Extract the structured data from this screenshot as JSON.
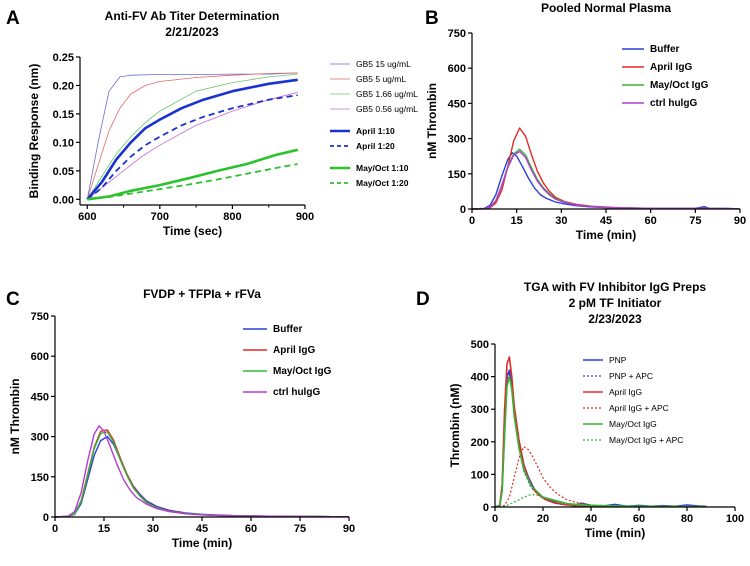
{
  "chart_data": [
    {
      "id": "A",
      "type": "line",
      "panel_letter": "A",
      "title": "Anti-FV Ab Titer Determination",
      "subtitle": "2/21/2023",
      "xlabel": "Time (sec)",
      "ylabel": "Binding Response (nm)",
      "xlim": [
        590,
        900
      ],
      "ylim": [
        -0.01,
        0.25
      ],
      "xticks": [
        600,
        700,
        800,
        900
      ],
      "yticks": [
        0.0,
        0.05,
        0.1,
        0.15,
        0.2,
        0.25
      ],
      "ytick_labels": [
        "0.00",
        "0.05",
        "0.10",
        "0.15",
        "0.20",
        "0.25"
      ],
      "legend_position": "right",
      "series": [
        {
          "name": "GB5 15 ug/mL",
          "color": "#6a6ad8",
          "style": "thin",
          "x": [
            600,
            615,
            630,
            645,
            660,
            690,
            750,
            800,
            850,
            890
          ],
          "y": [
            0.0,
            0.1,
            0.19,
            0.215,
            0.218,
            0.219,
            0.219,
            0.22,
            0.22,
            0.222
          ]
        },
        {
          "name": "GB5 5 ug/mL",
          "color": "#e06a6a",
          "style": "thin",
          "x": [
            600,
            615,
            630,
            645,
            660,
            680,
            700,
            750,
            800,
            850,
            890
          ],
          "y": [
            0.0,
            0.06,
            0.12,
            0.16,
            0.185,
            0.2,
            0.207,
            0.214,
            0.218,
            0.221,
            0.222
          ]
        },
        {
          "name": "GB5 1.66 ug/mL",
          "color": "#6cc66c",
          "style": "thin",
          "x": [
            600,
            620,
            640,
            660,
            680,
            700,
            750,
            800,
            850,
            890
          ],
          "y": [
            0.0,
            0.04,
            0.08,
            0.11,
            0.135,
            0.155,
            0.19,
            0.205,
            0.215,
            0.22
          ]
        },
        {
          "name": "GB5 0.56 ug/mL",
          "color": "#c86ad0",
          "style": "thin",
          "x": [
            600,
            625,
            650,
            675,
            700,
            750,
            800,
            850,
            890
          ],
          "y": [
            0.0,
            0.025,
            0.05,
            0.075,
            0.095,
            0.13,
            0.155,
            0.175,
            0.188
          ]
        },
        {
          "name": "April 1:10",
          "color": "#1a32d2",
          "style": "thick",
          "x": [
            600,
            620,
            640,
            660,
            680,
            700,
            730,
            760,
            800,
            850,
            890
          ],
          "y": [
            0.0,
            0.03,
            0.07,
            0.1,
            0.125,
            0.14,
            0.16,
            0.175,
            0.19,
            0.203,
            0.21
          ]
        },
        {
          "name": "April 1:20",
          "color": "#1a32d2",
          "style": "thickdash",
          "x": [
            600,
            620,
            640,
            660,
            680,
            700,
            730,
            760,
            800,
            850,
            890
          ],
          "y": [
            0.0,
            0.02,
            0.05,
            0.075,
            0.095,
            0.11,
            0.13,
            0.145,
            0.16,
            0.175,
            0.183
          ]
        },
        {
          "name": "May/Oct 1:10",
          "color": "#2ec12e",
          "style": "thick",
          "x": [
            600,
            630,
            660,
            700,
            740,
            780,
            820,
            860,
            890
          ],
          "y": [
            0.0,
            0.005,
            0.015,
            0.025,
            0.037,
            0.05,
            0.062,
            0.078,
            0.087
          ]
        },
        {
          "name": "May/Oct 1:20",
          "color": "#2ec12e",
          "style": "thickdash",
          "x": [
            600,
            630,
            660,
            700,
            740,
            780,
            820,
            860,
            890
          ],
          "y": [
            0.0,
            0.004,
            0.01,
            0.018,
            0.026,
            0.035,
            0.045,
            0.055,
            0.062
          ]
        }
      ]
    },
    {
      "id": "B",
      "type": "line",
      "panel_letter": "B",
      "title": "Pooled Normal Plasma",
      "xlabel": "Time (min)",
      "ylabel": "nM Thrombin",
      "xlim": [
        0,
        90
      ],
      "ylim": [
        0,
        750
      ],
      "xticks": [
        0,
        15,
        30,
        45,
        60,
        75,
        90
      ],
      "yticks": [
        0,
        150,
        300,
        450,
        600,
        750
      ],
      "legend_position": "top-right",
      "series": [
        {
          "name": "Buffer",
          "color": "#2b3fd6",
          "x": [
            0,
            4,
            6,
            8,
            10,
            12,
            13.5,
            15,
            17,
            19,
            21,
            23,
            25,
            28,
            31,
            35,
            40,
            45,
            50,
            55,
            60,
            65,
            70,
            75,
            78,
            80,
            85,
            90
          ],
          "y": [
            0,
            2,
            15,
            60,
            140,
            210,
            240,
            225,
            180,
            130,
            90,
            60,
            45,
            30,
            22,
            14,
            9,
            6,
            4,
            3,
            3,
            2,
            2,
            3,
            10,
            2,
            3,
            1
          ]
        },
        {
          "name": "April IgG",
          "color": "#e22a2a",
          "x": [
            0,
            4,
            6,
            8,
            10,
            12,
            14,
            16,
            18,
            20,
            22,
            24,
            26,
            28,
            31,
            35,
            40,
            45,
            50,
            55,
            60,
            65,
            70,
            75,
            80,
            85,
            90
          ],
          "y": [
            0,
            1,
            5,
            25,
            80,
            180,
            290,
            345,
            310,
            230,
            160,
            110,
            75,
            50,
            32,
            20,
            12,
            8,
            5,
            4,
            3,
            3,
            2,
            2,
            2,
            1,
            1
          ]
        },
        {
          "name": "May/Oct IgG",
          "color": "#35b535",
          "x": [
            0,
            4,
            6,
            8,
            10,
            12,
            14,
            16,
            18,
            20,
            22,
            24,
            26,
            28,
            31,
            35,
            40,
            45,
            50,
            55,
            60,
            65,
            70,
            75,
            80,
            85,
            90
          ],
          "y": [
            0,
            1,
            8,
            35,
            100,
            180,
            235,
            255,
            230,
            175,
            125,
            90,
            65,
            45,
            30,
            18,
            11,
            7,
            5,
            4,
            3,
            2,
            2,
            2,
            2,
            1,
            1
          ]
        },
        {
          "name": "ctrl hulgG",
          "color": "#b33cd6",
          "x": [
            0,
            4,
            6,
            8,
            10,
            12,
            14,
            16,
            18,
            20,
            22,
            24,
            26,
            28,
            31,
            35,
            40,
            45,
            50,
            55,
            60,
            65,
            70,
            75,
            80,
            85,
            90
          ],
          "y": [
            0,
            1,
            8,
            35,
            100,
            175,
            230,
            245,
            220,
            165,
            118,
            85,
            60,
            42,
            28,
            17,
            10,
            7,
            5,
            4,
            3,
            2,
            2,
            2,
            2,
            1,
            1
          ]
        }
      ]
    },
    {
      "id": "C",
      "type": "line",
      "panel_letter": "C",
      "title": "FVDP + TFPIa + rFVa",
      "xlabel": "Time (min)",
      "ylabel": "nM Thrombin",
      "xlim": [
        0,
        90
      ],
      "ylim": [
        0,
        750
      ],
      "xticks": [
        0,
        15,
        30,
        45,
        60,
        75,
        90
      ],
      "yticks": [
        0,
        150,
        300,
        450,
        600,
        750
      ],
      "legend_position": "top-right",
      "series": [
        {
          "name": "Buffer",
          "color": "#2b3fd6",
          "x": [
            0,
            4,
            6,
            8,
            10,
            12,
            14,
            16,
            18,
            20,
            22,
            24,
            26,
            28,
            31,
            35,
            40,
            45,
            50,
            55,
            60,
            65,
            70,
            75,
            80,
            85,
            90
          ],
          "y": [
            0,
            2,
            10,
            50,
            140,
            230,
            285,
            300,
            270,
            215,
            160,
            115,
            85,
            60,
            40,
            25,
            15,
            10,
            7,
            5,
            4,
            3,
            3,
            2,
            2,
            1,
            1
          ]
        },
        {
          "name": "April IgG",
          "color": "#e22a2a",
          "x": [
            0,
            4,
            6,
            8,
            10,
            12,
            14,
            16,
            18,
            20,
            22,
            24,
            26,
            28,
            31,
            35,
            40,
            45,
            50,
            55,
            60,
            65,
            70,
            75,
            80,
            85,
            90
          ],
          "y": [
            0,
            2,
            12,
            60,
            160,
            260,
            320,
            325,
            285,
            220,
            160,
            112,
            80,
            55,
            36,
            22,
            13,
            9,
            6,
            5,
            4,
            3,
            2,
            2,
            2,
            1,
            1
          ]
        },
        {
          "name": "May/Oct IgG",
          "color": "#35b535",
          "x": [
            0,
            4,
            6,
            8,
            10,
            12,
            14,
            16,
            18,
            20,
            22,
            24,
            26,
            28,
            31,
            35,
            40,
            45,
            50,
            55,
            60,
            65,
            70,
            75,
            80,
            85,
            90
          ],
          "y": [
            0,
            2,
            12,
            58,
            155,
            255,
            312,
            318,
            278,
            212,
            155,
            108,
            78,
            54,
            35,
            21,
            13,
            9,
            6,
            5,
            4,
            3,
            2,
            2,
            2,
            1,
            1
          ]
        },
        {
          "name": "ctrl hulgG",
          "color": "#b33cd6",
          "x": [
            0,
            4,
            6,
            8,
            10,
            12,
            13.5,
            15,
            17,
            19,
            21,
            23,
            25,
            28,
            31,
            35,
            40,
            45,
            50,
            55,
            60,
            65,
            70,
            75,
            80,
            85,
            90
          ],
          "y": [
            0,
            3,
            20,
            90,
            210,
            310,
            340,
            320,
            260,
            195,
            140,
            100,
            72,
            48,
            32,
            20,
            12,
            8,
            6,
            4,
            3,
            3,
            2,
            2,
            1,
            1,
            1
          ]
        }
      ]
    },
    {
      "id": "D",
      "type": "line",
      "panel_letter": "D",
      "title": "TGA with FV Inhibitor IgG Preps",
      "subtitle": "2 pM TF Initiator",
      "subtitle2": "2/23/2023",
      "xlabel": "Time (min)",
      "ylabel": "Thrombin (nM)",
      "xlim": [
        0,
        100
      ],
      "ylim": [
        0,
        500
      ],
      "xticks": [
        0,
        20,
        40,
        60,
        80,
        100
      ],
      "yticks": [
        0,
        100,
        200,
        300,
        400,
        500
      ],
      "legend_position": "top-right",
      "series": [
        {
          "name": "PNP",
          "color": "#2b3fd6",
          "style": "solid",
          "x": [
            0,
            2,
            3,
            4,
            5,
            6,
            7,
            8,
            10,
            12,
            14,
            16,
            18,
            20,
            22,
            25,
            28,
            30,
            33,
            36,
            40,
            45,
            50,
            55,
            60,
            65,
            70,
            75,
            80,
            85,
            88
          ],
          "y": [
            0,
            5,
            60,
            250,
            400,
            420,
            380,
            300,
            200,
            130,
            90,
            60,
            40,
            30,
            25,
            15,
            8,
            10,
            3,
            12,
            5,
            3,
            8,
            2,
            5,
            2,
            4,
            2,
            6,
            3,
            2
          ]
        },
        {
          "name": "PNP + APC",
          "color": "#2b3fd6",
          "style": "dotted",
          "x": [
            0,
            2,
            3,
            4,
            5,
            6,
            7,
            8,
            10,
            12,
            15,
            20,
            30,
            40,
            60,
            88
          ],
          "y": [
            0,
            4,
            50,
            220,
            380,
            410,
            360,
            280,
            180,
            110,
            60,
            25,
            8,
            4,
            2,
            1
          ]
        },
        {
          "name": "April IgG",
          "color": "#e22a2a",
          "style": "solid",
          "x": [
            0,
            2,
            3,
            4,
            5,
            6,
            7,
            8,
            10,
            12,
            14,
            16,
            18,
            20,
            22,
            25,
            30,
            35,
            40,
            50,
            60,
            70,
            88
          ],
          "y": [
            0,
            5,
            70,
            300,
            440,
            460,
            400,
            310,
            205,
            130,
            85,
            55,
            38,
            28,
            20,
            12,
            6,
            4,
            3,
            2,
            2,
            1,
            1
          ]
        },
        {
          "name": "April IgG + APC",
          "color": "#e22a2a",
          "style": "dotted",
          "x": [
            0,
            4,
            6,
            8,
            10,
            12,
            14,
            16,
            18,
            20,
            23,
            26,
            30,
            35,
            40,
            50,
            60,
            88
          ],
          "y": [
            0,
            5,
            30,
            90,
            150,
            185,
            175,
            150,
            120,
            90,
            60,
            40,
            22,
            12,
            6,
            3,
            2,
            1
          ]
        },
        {
          "name": "May/Oct IgG",
          "color": "#35b535",
          "style": "solid",
          "x": [
            0,
            2,
            3,
            4,
            5,
            6,
            7,
            8,
            10,
            12,
            15,
            20,
            30,
            40,
            60,
            88
          ],
          "y": [
            0,
            4,
            50,
            220,
            370,
            400,
            360,
            280,
            180,
            115,
            65,
            30,
            10,
            5,
            2,
            1
          ]
        },
        {
          "name": "May/Oct IgG + APC",
          "color": "#35b535",
          "style": "dotted",
          "x": [
            0,
            4,
            6,
            8,
            10,
            12,
            14,
            16,
            18,
            20,
            24,
            28,
            32,
            40,
            50,
            60,
            88
          ],
          "y": [
            0,
            2,
            8,
            15,
            22,
            30,
            36,
            38,
            36,
            30,
            20,
            12,
            7,
            3,
            2,
            1,
            1
          ]
        }
      ]
    }
  ]
}
